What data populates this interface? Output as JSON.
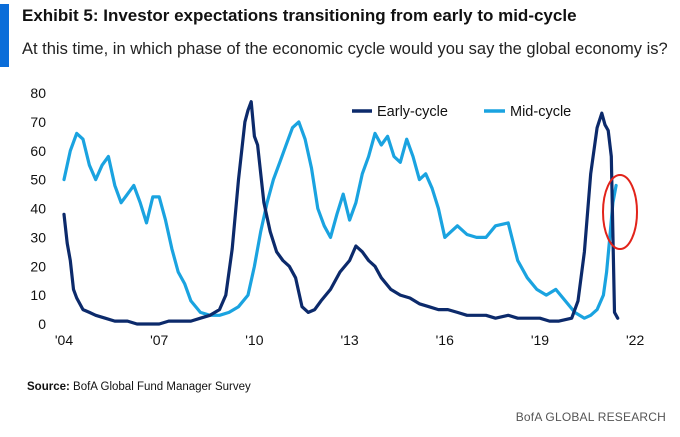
{
  "header": {
    "title": "Exhibit 5: Investor expectations transitioning from early to mid-cycle",
    "subtitle": "At this time, in which phase of the economic cycle would you say the global economy is?"
  },
  "footer": {
    "source_label": "Source:",
    "source_text": " BofA Global Fund Manager Survey",
    "brand": "BofA GLOBAL RESEARCH"
  },
  "colors": {
    "accent": "#0a6dd9",
    "early_cycle": "#0c2a6b",
    "mid_cycle": "#1aa3e0",
    "highlight_circle": "#e2231a"
  },
  "chart_data": {
    "type": "line",
    "title": "",
    "xlabel": "",
    "ylabel": "",
    "xlim": [
      2004,
      2022.5
    ],
    "ylim": [
      0,
      80
    ],
    "xticks": [
      2004,
      2007,
      2010,
      2013,
      2016,
      2019,
      2022
    ],
    "xtick_labels": [
      "'04",
      "'07",
      "'10",
      "'13",
      "'16",
      "'19",
      "'22"
    ],
    "yticks": [
      0,
      10,
      20,
      30,
      40,
      50,
      60,
      70,
      80
    ],
    "ytick_labels": [
      "0",
      "10",
      "20",
      "30",
      "40",
      "50",
      "60",
      "70",
      "80"
    ],
    "grid": false,
    "legend_position": "top-right",
    "annotation": "red circle highlighting the latest readings (early 2021)",
    "series": [
      {
        "name": "Early-cycle",
        "x": [
          2004.0,
          2004.1,
          2004.2,
          2004.3,
          2004.4,
          2004.6,
          2004.8,
          2005.0,
          2005.3,
          2005.6,
          2006.0,
          2006.3,
          2006.6,
          2007.0,
          2007.3,
          2007.6,
          2008.0,
          2008.3,
          2008.6,
          2008.9,
          2009.1,
          2009.3,
          2009.5,
          2009.7,
          2009.8,
          2009.9,
          2010.0,
          2010.1,
          2010.3,
          2010.5,
          2010.7,
          2010.9,
          2011.1,
          2011.3,
          2011.5,
          2011.7,
          2011.9,
          2012.1,
          2012.4,
          2012.7,
          2013.0,
          2013.2,
          2013.4,
          2013.6,
          2013.8,
          2014.0,
          2014.3,
          2014.6,
          2014.9,
          2015.2,
          2015.5,
          2015.8,
          2016.1,
          2016.4,
          2016.7,
          2017.0,
          2017.3,
          2017.6,
          2018.0,
          2018.3,
          2018.6,
          2019.0,
          2019.3,
          2019.6,
          2020.0,
          2020.2,
          2020.4,
          2020.6,
          2020.8,
          2020.95,
          2021.05,
          2021.15,
          2021.25,
          2021.35,
          2021.45
        ],
        "values": [
          38,
          28,
          22,
          12,
          9,
          5,
          4,
          3,
          2,
          1,
          1,
          0,
          0,
          0,
          1,
          1,
          1,
          2,
          3,
          5,
          10,
          26,
          50,
          70,
          74,
          77,
          65,
          62,
          42,
          32,
          25,
          22,
          20,
          16,
          6,
          4,
          5,
          8,
          12,
          18,
          22,
          27,
          25,
          22,
          20,
          16,
          12,
          10,
          9,
          7,
          6,
          5,
          5,
          4,
          3,
          3,
          3,
          2,
          3,
          2,
          2,
          2,
          1,
          1,
          2,
          8,
          25,
          52,
          68,
          73,
          69,
          67,
          58,
          4,
          2
        ]
      },
      {
        "name": "Mid-cycle",
        "x": [
          2004.0,
          2004.2,
          2004.4,
          2004.6,
          2004.8,
          2005.0,
          2005.2,
          2005.4,
          2005.6,
          2005.8,
          2006.0,
          2006.2,
          2006.4,
          2006.6,
          2006.8,
          2007.0,
          2007.2,
          2007.4,
          2007.6,
          2007.8,
          2008.0,
          2008.3,
          2008.6,
          2008.9,
          2009.2,
          2009.5,
          2009.8,
          2010.0,
          2010.2,
          2010.4,
          2010.6,
          2010.8,
          2011.0,
          2011.2,
          2011.4,
          2011.6,
          2011.8,
          2012.0,
          2012.2,
          2012.4,
          2012.6,
          2012.8,
          2013.0,
          2013.2,
          2013.4,
          2013.6,
          2013.8,
          2014.0,
          2014.2,
          2014.4,
          2014.6,
          2014.8,
          2015.0,
          2015.2,
          2015.4,
          2015.6,
          2015.8,
          2016.0,
          2016.2,
          2016.4,
          2016.7,
          2017.0,
          2017.3,
          2017.6,
          2018.0,
          2018.3,
          2018.6,
          2018.9,
          2019.2,
          2019.5,
          2019.8,
          2020.1,
          2020.4,
          2020.6,
          2020.8,
          2021.0,
          2021.1,
          2021.2,
          2021.3,
          2021.4
        ],
        "values": [
          50,
          60,
          66,
          64,
          55,
          50,
          55,
          58,
          48,
          42,
          45,
          48,
          42,
          35,
          44,
          44,
          36,
          26,
          18,
          14,
          8,
          4,
          3,
          3,
          4,
          6,
          10,
          20,
          32,
          42,
          50,
          56,
          62,
          68,
          70,
          64,
          54,
          40,
          34,
          30,
          38,
          45,
          36,
          42,
          52,
          58,
          66,
          62,
          65,
          58,
          56,
          64,
          58,
          50,
          52,
          47,
          40,
          30,
          32,
          34,
          31,
          30,
          30,
          34,
          35,
          22,
          16,
          12,
          10,
          12,
          8,
          4,
          2,
          3,
          5,
          10,
          18,
          30,
          42,
          48
        ]
      }
    ]
  }
}
